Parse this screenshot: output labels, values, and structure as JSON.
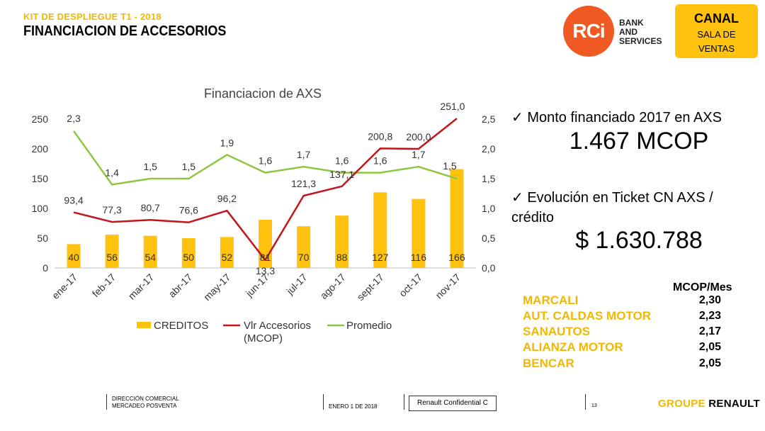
{
  "header": {
    "kit_title": "KIT DE DESPLIEGUE T1 - 2018",
    "main_title": "FINANCIACION DE ACCESORIOS",
    "logo_mark": "RCi",
    "logo_text": [
      "BANK",
      "AND",
      "SERVICES"
    ],
    "canal_title": "CANAL",
    "canal_sub": [
      "SALA DE",
      "VENTAS"
    ]
  },
  "chart_data": {
    "type": "bar",
    "title": "Financiacion de AXS",
    "categories": [
      "ene-17",
      "feb-17",
      "mar-17",
      "abr-17",
      "may-17",
      "jun-17",
      "jul-17",
      "ago-17",
      "sept-17",
      "oct-17",
      "nov-17"
    ],
    "series": [
      {
        "name": "CREDITOS",
        "type": "bar",
        "axis": "left",
        "color": "#ffc20e",
        "values": [
          40,
          56,
          54,
          50,
          52,
          81,
          70,
          88,
          127,
          116,
          166
        ],
        "labels": [
          "40",
          "56",
          "54",
          "50",
          "52",
          "81",
          "70",
          "88",
          "127",
          "116",
          "166"
        ]
      },
      {
        "name": "Vlr Accesorios (MCOP)",
        "type": "line",
        "axis": "left",
        "color": "#c0161c",
        "values": [
          93.4,
          77.3,
          80.7,
          76.6,
          96.2,
          13.3,
          121.3,
          137.1,
          200.8,
          200.0,
          251.0
        ],
        "labels": [
          "93,4",
          "77,3",
          "80,7",
          "76,6",
          "96,2",
          "13,3",
          "121,3",
          "137,1",
          "200,8",
          "200,0",
          "251,0"
        ]
      },
      {
        "name": "Promedio",
        "type": "line",
        "axis": "right",
        "color": "#8dc63f",
        "values": [
          2.3,
          1.4,
          1.5,
          1.5,
          1.9,
          1.6,
          1.7,
          1.6,
          1.6,
          1.7,
          1.5
        ],
        "labels": [
          "2,3",
          "1,4",
          "1,5",
          "1,5",
          "1,9",
          "1,6",
          "1,7",
          "1,6",
          "1,6",
          "1,7",
          "1,5"
        ]
      }
    ],
    "ylim": [
      0,
      250
    ],
    "yticks": [
      "0",
      "50",
      "100",
      "150",
      "200",
      "250"
    ],
    "y2lim": [
      0,
      2.5
    ],
    "y2ticks": [
      "0,0",
      "0,5",
      "1,0",
      "1,5",
      "2,0",
      "2,5"
    ],
    "legend_entries": [
      "CREDITOS",
      "Vlr Accesorios",
      "(MCOP)",
      "Promedio"
    ],
    "legend_position": "bottom",
    "grid": false
  },
  "summary": {
    "bullet1": "Monto financiado 2017 en AXS",
    "bullet1_value": "1.467 MCOP",
    "bullet2": "Evolución en Ticket CN AXS / crédito",
    "bullet2_value": "$ 1.630.788",
    "check": "✓"
  },
  "dealers": {
    "header": "MCOP/Mes",
    "rows": [
      {
        "name": "MARCALI",
        "value": "2,30"
      },
      {
        "name": "AUT. CALDAS MOTOR",
        "value": "2,23"
      },
      {
        "name": "SANAUTOS",
        "value": "2,17"
      },
      {
        "name": "ALIANZA MOTOR",
        "value": "2,05"
      },
      {
        "name": "BENCAR",
        "value": "2,05"
      }
    ]
  },
  "footer": {
    "dept_line1": "DIRECCIÓN COMERCIAL",
    "dept_line2": "MERCADEO POSVENTA",
    "date": "ENERO 1 DE 2018",
    "confidential": "Renault Confidential C",
    "page": "13",
    "groupe_1": "GROUPE",
    "groupe_2": "RENAULT"
  }
}
